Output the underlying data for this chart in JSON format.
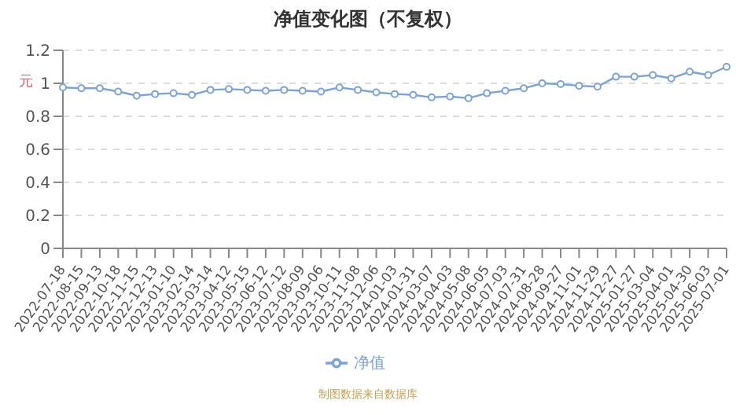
{
  "chart_data": {
    "type": "line",
    "title": "净值变化图（不复权）",
    "ylabel": "元",
    "categories": [
      "2022-07-18",
      "2022-08-15",
      "2022-09-13",
      "2022-10-18",
      "2022-11-15",
      "2022-12-13",
      "2023-01-10",
      "2023-02-14",
      "2023-03-14",
      "2023-04-12",
      "2023-05-15",
      "2023-06-12",
      "2023-07-12",
      "2023-08-09",
      "2023-09-06",
      "2023-10-11",
      "2023-11-08",
      "2023-12-06",
      "2024-01-03",
      "2024-01-31",
      "2024-03-07",
      "2024-04-03",
      "2024-05-08",
      "2024-06-05",
      "2024-07-03",
      "2024-07-31",
      "2024-08-28",
      "2024-09-27",
      "2024-11-01",
      "2024-11-29",
      "2024-12-27",
      "2025-01-27",
      "2025-03-04",
      "2025-04-01",
      "2025-04-30",
      "2025-06-03",
      "2025-07-01"
    ],
    "series": [
      {
        "name": "净值",
        "color": "#7ba2e0",
        "values": [
          0.975,
          0.97,
          0.97,
          0.95,
          0.925,
          0.935,
          0.94,
          0.93,
          0.96,
          0.965,
          0.96,
          0.955,
          0.96,
          0.955,
          0.95,
          0.975,
          0.96,
          0.945,
          0.935,
          0.93,
          0.915,
          0.92,
          0.91,
          0.94,
          0.955,
          0.97,
          1.0,
          0.995,
          0.985,
          0.98,
          1.04,
          1.04,
          1.05,
          1.03,
          1.07,
          1.05,
          1.1
        ]
      }
    ],
    "ylim": [
      0,
      1.2
    ],
    "yticks": [
      0,
      0.2,
      0.4,
      0.6,
      0.8,
      1,
      1.2
    ],
    "grid": "y",
    "legend": "bottom",
    "marker": "circle",
    "line_style": "solid",
    "annotations": [
      "制图数据来自数据库"
    ]
  }
}
